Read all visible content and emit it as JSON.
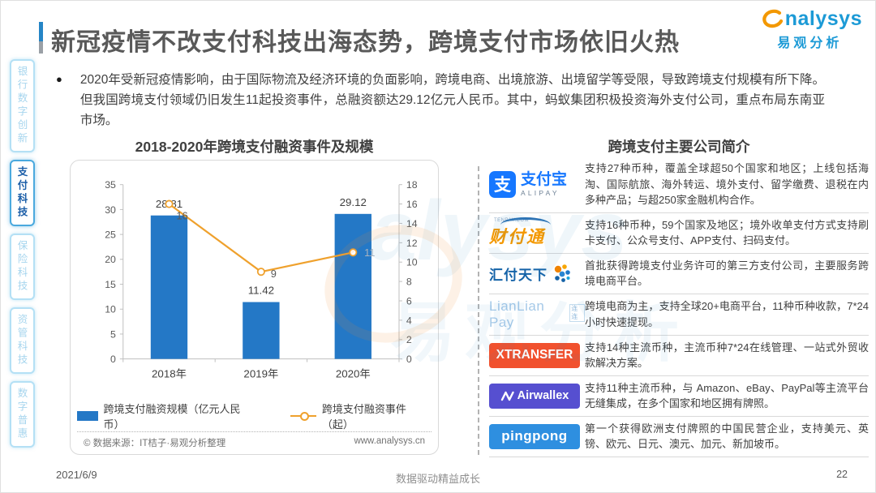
{
  "page": {
    "date": "2021/6/9",
    "footer_center": "数据驱动精益成长",
    "page_number": "22"
  },
  "header": {
    "title": "新冠疫情不改支付科技出海态势，跨境支付市场依旧火热",
    "logo": {
      "text": "analysys",
      "subtitle": "易观分析",
      "brand_blue": "#1c9ad6",
      "brand_orange": "#f39800"
    }
  },
  "sidebar": {
    "items": [
      {
        "key": "banking-digital-innovation",
        "label": "银行数字创新",
        "active": false
      },
      {
        "key": "payment-technology",
        "label": "支付科技",
        "active": true
      },
      {
        "key": "insurance-technology",
        "label": "保险科技",
        "active": false
      },
      {
        "key": "asset-management-technology",
        "label": "资管科技",
        "active": false
      },
      {
        "key": "digital-inclusion",
        "label": "数字普惠",
        "active": false
      }
    ]
  },
  "summary": {
    "bullet": "●",
    "text": "2020年受新冠疫情影响，由于国际物流及经济环境的负面影响，跨境电商、出境旅游、出境留学等受限，导致跨境支付规模有所下降。但我国跨境支付领域仍旧发生11起投资事件，总融资额达29.12亿元人民币。其中，蚂蚁集团积极投资海外支付公司，重点布局东南亚市场。"
  },
  "chart_data": {
    "type": "bar",
    "title": "2018-2020年跨境支付融资事件及规模",
    "categories": [
      "2018年",
      "2019年",
      "2020年"
    ],
    "series": [
      {
        "name": "跨境支付融资规模（亿元人民币）",
        "type": "bar",
        "axis": "left",
        "values": [
          28.81,
          11.42,
          29.12
        ],
        "color": "#2478c6"
      },
      {
        "name": "跨境支付融资事件（起）",
        "type": "line",
        "axis": "right",
        "values": [
          16,
          9,
          11
        ],
        "color": "#efa12d"
      }
    ],
    "left_axis": {
      "min": 0,
      "max": 35,
      "step": 5
    },
    "right_axis": {
      "min": 0,
      "max": 18,
      "step": 2
    },
    "grid": false,
    "legend_position": "bottom",
    "source_left": "© 数据来源：IT桔子·易观分析整理",
    "source_right": "www.analysys.cn"
  },
  "companies": {
    "title": "跨境支付主要公司简介",
    "rows": [
      {
        "id": "alipay",
        "logo_glyph": "支",
        "logo_text": "支付宝",
        "logo_sub": "ALIPAY",
        "logo_color": "#1677ff",
        "desc": "支持27种币种，覆盖全球超50个国家和地区；上线包括海淘、国际航旅、海外转运、境外支付、留学缴费、退税在内多种产品；与超250家金融机构合作。"
      },
      {
        "id": "tenpay",
        "logo_text": "财付通",
        "logo_sub": "TENPAY.COM",
        "logo_color": "#f39800",
        "desc": "支持16种币种，59个国家及地区；境外收单支付方式支持刷卡支付、公众号支付、APP支付、扫码支付。"
      },
      {
        "id": "huifu",
        "logo_text": "汇付天下",
        "logo_color": "#1563a8",
        "desc": "首批获得跨境支付业务许可的第三方支付公司，主要服务跨境电商平台。"
      },
      {
        "id": "lianlian",
        "logo_text": "LianLian Pay",
        "logo_sub": "连连",
        "logo_color": "#a5c9e8",
        "desc": "跨境电商为主，支持全球20+电商平台，11种币种收款，7*24 小时快速提现。"
      },
      {
        "id": "xtransfer",
        "logo_text": "XTRANSFER",
        "logo_color": "#f1512e",
        "desc": "支持14种主流币种，主流币种7*24在线管理、一站式外贸收款解决方案。"
      },
      {
        "id": "airwallex",
        "logo_text": "Airwallex",
        "logo_color": "#564fd0",
        "desc": "支持11种主流币种，与 Amazon、eBay、PayPal等主流平台无缝集成，在多个国家和地区拥有牌照。"
      },
      {
        "id": "pingpong",
        "logo_text": "pingpong",
        "logo_color": "#2e8fe0",
        "desc": "第一个获得欧洲支付牌照的中国民营企业，支持美元、英镑、欧元、日元、澳元、加元、新加坡币。"
      }
    ]
  }
}
